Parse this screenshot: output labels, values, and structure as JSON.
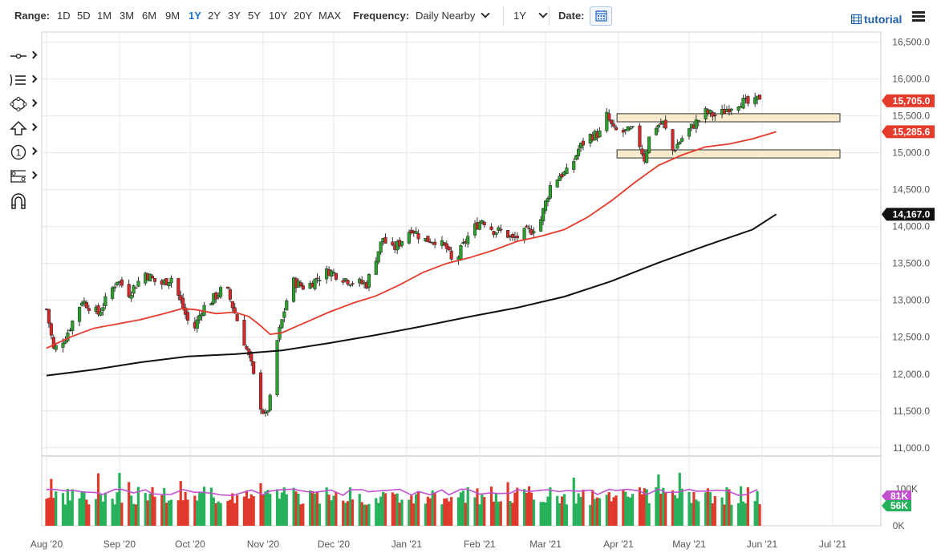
{
  "toolbar": {
    "range_label": "Range:",
    "ranges": [
      "1D",
      "5D",
      "1M",
      "3M",
      "6M",
      "9M",
      "1Y",
      "2Y",
      "3Y",
      "5Y",
      "10Y",
      "20Y",
      "MAX"
    ],
    "active_range": "1Y",
    "frequency_label": "Frequency:",
    "frequency_value": "Daily Nearby",
    "period_value": "1Y",
    "date_label": "Date:",
    "tutorial_label": "tutorial",
    "accent_color": "#1f6fcf"
  },
  "left_tools": [
    {
      "name": "line-tool-icon"
    },
    {
      "name": "studies-list-icon"
    },
    {
      "name": "shapes-tool-icon"
    },
    {
      "name": "arrow-up-tool-icon"
    },
    {
      "name": "count-tool-icon"
    },
    {
      "name": "fib-tool-icon"
    },
    {
      "name": "magnet-icon"
    }
  ],
  "chart_data": {
    "type": "candlestick",
    "y_ticks": [
      "16,500.0",
      "16,000.0",
      "15,500.0",
      "15,000.0",
      "14,500.0",
      "14,000.0",
      "13,500.0",
      "13,000.0",
      "12,500.0",
      "12,000.0",
      "11,500.0",
      "11,000.0"
    ],
    "y_tick_values": [
      16500,
      16000,
      15500,
      15000,
      14500,
      14000,
      13500,
      13000,
      12500,
      12000,
      11500,
      11000
    ],
    "ylim": [
      10900,
      16550
    ],
    "x_ticks": [
      "Aug '20",
      "Sep '20",
      "Oct '20",
      "Nov '20",
      "Dec '20",
      "Jan '21",
      "Feb '21",
      "Mar '21",
      "Apr '21",
      "May '21",
      "Jun '21",
      "Jul '21"
    ],
    "x_tick_days": [
      0,
      31,
      61,
      92,
      122,
      153,
      184,
      212,
      243,
      273,
      304,
      334
    ],
    "price_tags": [
      {
        "label": "15,705.0",
        "value": 15705,
        "color": "#e53b2c"
      },
      {
        "label": "15,285.6",
        "value": 15285.6,
        "color": "#e53b2c"
      },
      {
        "label": "14,167.0",
        "value": 14167,
        "color": "#111111"
      }
    ],
    "volume_tags": [
      {
        "label": "100K",
        "value": 100,
        "color": "#c052d0"
      },
      {
        "label": "81K",
        "value": 81,
        "color": "#c052d0"
      },
      {
        "label": "56K",
        "value": 56,
        "color": "#27b15b"
      }
    ],
    "volume_axis_labels": [
      "100K",
      "0K"
    ],
    "zones": [
      {
        "low": 15420,
        "high": 15530
      },
      {
        "low": 14930,
        "high": 15040
      }
    ],
    "ma_short": [
      [
        0,
        12350
      ],
      [
        10,
        12500
      ],
      [
        20,
        12620
      ],
      [
        30,
        12680
      ],
      [
        40,
        12740
      ],
      [
        50,
        12820
      ],
      [
        58,
        12890
      ],
      [
        64,
        12870
      ],
      [
        72,
        12820
      ],
      [
        80,
        12840
      ],
      [
        86,
        12780
      ],
      [
        90,
        12680
      ],
      [
        95,
        12540
      ],
      [
        100,
        12560
      ],
      [
        110,
        12700
      ],
      [
        120,
        12840
      ],
      [
        130,
        12960
      ],
      [
        140,
        13060
      ],
      [
        150,
        13210
      ],
      [
        160,
        13380
      ],
      [
        170,
        13500
      ],
      [
        180,
        13580
      ],
      [
        190,
        13680
      ],
      [
        200,
        13800
      ],
      [
        210,
        13870
      ],
      [
        220,
        13960
      ],
      [
        230,
        14130
      ],
      [
        240,
        14350
      ],
      [
        250,
        14600
      ],
      [
        260,
        14830
      ],
      [
        270,
        14970
      ],
      [
        280,
        15080
      ],
      [
        290,
        15120
      ],
      [
        300,
        15190
      ],
      [
        310,
        15285.6
      ]
    ],
    "ma_long": [
      [
        0,
        11980
      ],
      [
        20,
        12060
      ],
      [
        40,
        12160
      ],
      [
        60,
        12240
      ],
      [
        80,
        12270
      ],
      [
        100,
        12320
      ],
      [
        120,
        12420
      ],
      [
        140,
        12530
      ],
      [
        160,
        12650
      ],
      [
        180,
        12780
      ],
      [
        200,
        12900
      ],
      [
        220,
        13050
      ],
      [
        240,
        13260
      ],
      [
        260,
        13510
      ],
      [
        280,
        13740
      ],
      [
        300,
        13960
      ],
      [
        310,
        14167
      ]
    ],
    "candle_seed": 7,
    "candle_keys": [
      [
        0,
        12880
      ],
      [
        3,
        12330
      ],
      [
        8,
        12500
      ],
      [
        15,
        13000
      ],
      [
        22,
        12820
      ],
      [
        30,
        13280
      ],
      [
        35,
        13100
      ],
      [
        42,
        13370
      ],
      [
        48,
        13200
      ],
      [
        53,
        13310
      ],
      [
        57,
        12980
      ],
      [
        62,
        12550
      ],
      [
        66,
        12880
      ],
      [
        72,
        13060
      ],
      [
        76,
        13200
      ],
      [
        80,
        12830
      ],
      [
        84,
        12440
      ],
      [
        87,
        12120
      ],
      [
        90,
        11650
      ],
      [
        93,
        11420
      ],
      [
        95,
        11650
      ],
      [
        98,
        12450
      ],
      [
        102,
        13000
      ],
      [
        105,
        13250
      ],
      [
        110,
        13170
      ],
      [
        115,
        13300
      ],
      [
        120,
        13400
      ],
      [
        125,
        13320
      ],
      [
        130,
        13250
      ],
      [
        136,
        13220
      ],
      [
        139,
        13500
      ],
      [
        143,
        13850
      ],
      [
        146,
        13650
      ],
      [
        150,
        13780
      ],
      [
        155,
        13980
      ],
      [
        160,
        13820
      ],
      [
        165,
        13820
      ],
      [
        170,
        13700
      ],
      [
        173,
        13450
      ],
      [
        176,
        13680
      ],
      [
        180,
        13920
      ],
      [
        185,
        14100
      ],
      [
        190,
        13950
      ],
      [
        195,
        13920
      ],
      [
        198,
        13820
      ],
      [
        202,
        13900
      ],
      [
        206,
        13950
      ],
      [
        210,
        14100
      ],
      [
        214,
        14550
      ],
      [
        218,
        14700
      ],
      [
        222,
        14740
      ],
      [
        226,
        15050
      ],
      [
        230,
        15220
      ],
      [
        235,
        15260
      ],
      [
        238,
        15500
      ],
      [
        241,
        15300
      ],
      [
        245,
        15280
      ],
      [
        250,
        15300
      ],
      [
        254,
        14920
      ],
      [
        257,
        15340
      ],
      [
        262,
        15400
      ],
      [
        266,
        15030
      ],
      [
        270,
        15200
      ],
      [
        275,
        15380
      ],
      [
        280,
        15550
      ],
      [
        285,
        15490
      ],
      [
        290,
        15620
      ],
      [
        295,
        15700
      ],
      [
        300,
        15640
      ],
      [
        303,
        15760
      ]
    ],
    "volume_series": "daily bars, green up / red down, range 40K-100K",
    "volume_ma_seed": 3
  }
}
